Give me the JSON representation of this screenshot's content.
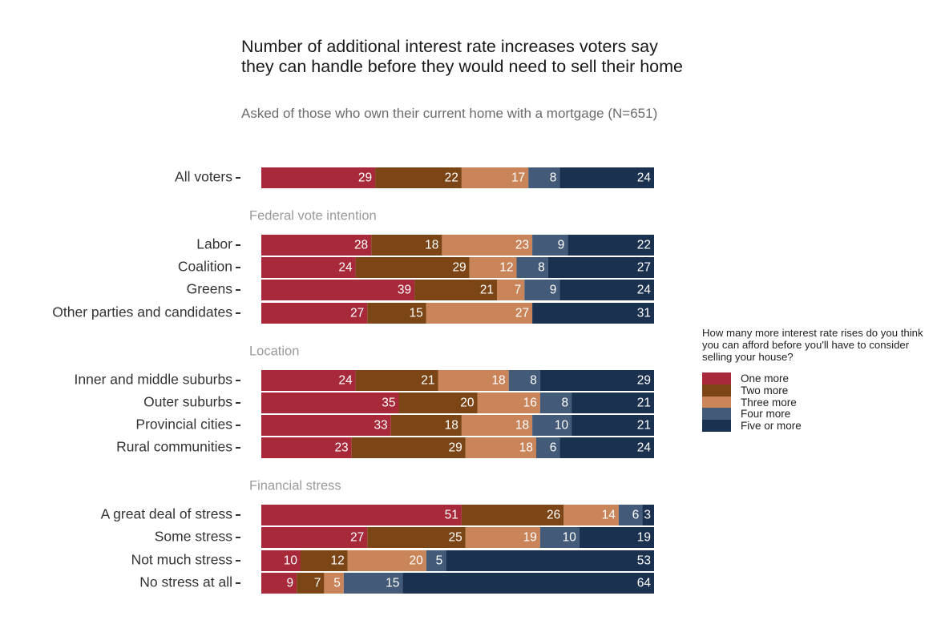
{
  "chart_data": {
    "type": "bar",
    "orientation": "horizontal",
    "stacked": true,
    "title": "Number of additional interest rate increases voters say they can handle before they would need to sell their home",
    "subtitle": "Asked of those who own their current home with a mortgage (N=651)",
    "legend": {
      "title": "How many more interest rate rises do you think you can afford before you'll have to consider selling your house?",
      "placement": "right",
      "entries": [
        "One more",
        "Two more",
        "Three more",
        "Four more",
        "Five or more"
      ]
    },
    "colors": [
      "#a82a3a",
      "#7b4516",
      "#c9845a",
      "#435b79",
      "#1b3150"
    ],
    "groups": [
      {
        "name": "",
        "rows": [
          {
            "label": "All voters",
            "values": [
              29,
              22,
              17,
              8,
              24
            ]
          }
        ]
      },
      {
        "name": "Federal vote intention",
        "rows": [
          {
            "label": "Labor",
            "values": [
              28,
              18,
              23,
              9,
              22
            ]
          },
          {
            "label": "Coalition",
            "values": [
              24,
              29,
              12,
              8,
              27
            ]
          },
          {
            "label": "Greens",
            "values": [
              39,
              21,
              7,
              9,
              24
            ]
          },
          {
            "label": "Other parties and candidates",
            "values": [
              27,
              15,
              27,
              0,
              31
            ]
          }
        ]
      },
      {
        "name": "Location",
        "rows": [
          {
            "label": "Inner and middle suburbs",
            "values": [
              24,
              21,
              18,
              8,
              29
            ]
          },
          {
            "label": "Outer suburbs",
            "values": [
              35,
              20,
              16,
              8,
              21
            ]
          },
          {
            "label": "Provincial cities",
            "values": [
              33,
              18,
              18,
              10,
              21
            ]
          },
          {
            "label": "Rural communities",
            "values": [
              23,
              29,
              18,
              6,
              24
            ]
          }
        ]
      },
      {
        "name": "Financial stress",
        "rows": [
          {
            "label": "A great deal of stress",
            "values": [
              51,
              26,
              14,
              6,
              3
            ]
          },
          {
            "label": "Some stress",
            "values": [
              27,
              25,
              19,
              10,
              19
            ]
          },
          {
            "label": "Not much stress",
            "values": [
              10,
              12,
              20,
              5,
              53
            ]
          },
          {
            "label": "No stress at all",
            "values": [
              9,
              7,
              5,
              15,
              64
            ]
          }
        ]
      }
    ]
  }
}
